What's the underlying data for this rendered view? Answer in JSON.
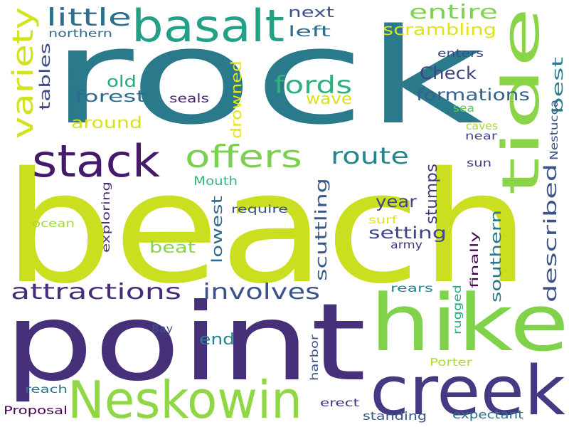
{
  "words": [
    {
      "text": "rock",
      "color": "#2a7a8c"
    },
    {
      "text": "beach",
      "color": "#c9df1f"
    },
    {
      "text": "point",
      "color": "#46307a"
    },
    {
      "text": "hike",
      "color": "#7fd24a"
    },
    {
      "text": "creek",
      "color": "#443983"
    },
    {
      "text": "Neskowin",
      "color": "#8fd744"
    },
    {
      "text": "tide",
      "color": "#8ad547"
    },
    {
      "text": "basalt",
      "color": "#23a086"
    },
    {
      "text": "stack",
      "color": "#451a6b"
    },
    {
      "text": "offers",
      "color": "#7ad151"
    },
    {
      "text": "variety",
      "color": "#d2e21b"
    },
    {
      "text": "little",
      "color": "#2c6f8e"
    },
    {
      "text": "route",
      "color": "#25858e"
    },
    {
      "text": "attractions",
      "color": "#472c7a"
    },
    {
      "text": "involves",
      "color": "#3b528b"
    },
    {
      "text": "fords",
      "color": "#2db27d"
    },
    {
      "text": "entire",
      "color": "#7fd34e"
    },
    {
      "text": "scrambling",
      "color": "#dfe318"
    },
    {
      "text": "next",
      "color": "#3b528b"
    },
    {
      "text": "left",
      "color": "#2e6e8e"
    },
    {
      "text": "northern",
      "color": "#31688e"
    },
    {
      "text": "Check",
      "color": "#404387"
    },
    {
      "text": "formations",
      "color": "#33628d"
    },
    {
      "text": "best",
      "color": "#287d8e"
    },
    {
      "text": "enters",
      "color": "#3e4989"
    },
    {
      "text": "wave",
      "color": "#d8e219"
    },
    {
      "text": "sea",
      "color": "#5ec962"
    },
    {
      "text": "caves",
      "color": "#a5db36"
    },
    {
      "text": "near",
      "color": "#404688"
    },
    {
      "text": "Nestucca",
      "color": "#3b528b"
    },
    {
      "text": "old",
      "color": "#25ac82"
    },
    {
      "text": "forest",
      "color": "#2f6b8e"
    },
    {
      "text": "tables",
      "color": "#3f4788"
    },
    {
      "text": "around",
      "color": "#d5e21a"
    },
    {
      "text": "seals",
      "color": "#482475"
    },
    {
      "text": "drowned",
      "color": "#e5e419"
    },
    {
      "text": "described",
      "color": "#3b528b"
    },
    {
      "text": "sun",
      "color": "#453781"
    },
    {
      "text": "stumps",
      "color": "#453882"
    },
    {
      "text": "year",
      "color": "#404588"
    },
    {
      "text": "setting",
      "color": "#404688"
    },
    {
      "text": "scuttling",
      "color": "#38598c"
    },
    {
      "text": "Mouth",
      "color": "#37b878"
    },
    {
      "text": "lowest",
      "color": "#306a8e"
    },
    {
      "text": "beat",
      "color": "#86d549"
    },
    {
      "text": "require",
      "color": "#3b528b"
    },
    {
      "text": "surf",
      "color": "#dfe318"
    },
    {
      "text": "army",
      "color": "#46327e"
    },
    {
      "text": "southern",
      "color": "#2a768e"
    },
    {
      "text": "finally",
      "color": "#440154"
    },
    {
      "text": "exploring",
      "color": "#482878"
    },
    {
      "text": "ocean",
      "color": "#a0da39"
    },
    {
      "text": "rears",
      "color": "#25848e"
    },
    {
      "text": "rugged",
      "color": "#26a784"
    },
    {
      "text": "end",
      "color": "#25838e"
    },
    {
      "text": "Bay",
      "color": "#3b528b"
    },
    {
      "text": "harbor",
      "color": "#3b528b"
    },
    {
      "text": "Porter",
      "color": "#addc30"
    },
    {
      "text": "reach",
      "color": "#2c738e"
    },
    {
      "text": "erect",
      "color": "#46307e"
    },
    {
      "text": "Proposal",
      "color": "#440154"
    },
    {
      "text": "standing",
      "color": "#3b528b"
    },
    {
      "text": "expectant",
      "color": "#2e6f8e"
    }
  ]
}
